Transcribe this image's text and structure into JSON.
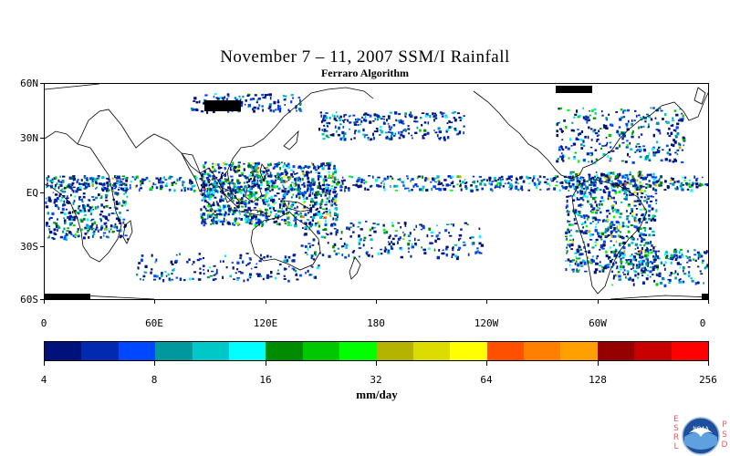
{
  "title": "November 7 – 11, 2007 SSM/I Rainfall",
  "subtitle": "Ferraro Algorithm",
  "map": {
    "lat_labels": [
      "60N",
      "30N",
      "EQ",
      "30S",
      "60S"
    ],
    "lon_labels": [
      "0",
      "60E",
      "120E",
      "180",
      "120W",
      "60W",
      "0"
    ]
  },
  "colorbar": {
    "units": "mm/day",
    "tick_labels": [
      "4",
      "8",
      "16",
      "32",
      "64",
      "128",
      "256"
    ],
    "colors": [
      "#00127a",
      "#002ab0",
      "#0048ff",
      "#00989c",
      "#00c8c8",
      "#00ffff",
      "#008c00",
      "#00c800",
      "#00ff00",
      "#b4b400",
      "#dcdc00",
      "#ffff00",
      "#ff5000",
      "#ff8000",
      "#ffa000",
      "#960000",
      "#c80000",
      "#ff0000"
    ]
  },
  "logo": {
    "left_letters": [
      "E",
      "S",
      "R",
      "L"
    ],
    "right_letters": [
      "P",
      "S",
      "D"
    ],
    "badge_text": "NOAA"
  }
}
